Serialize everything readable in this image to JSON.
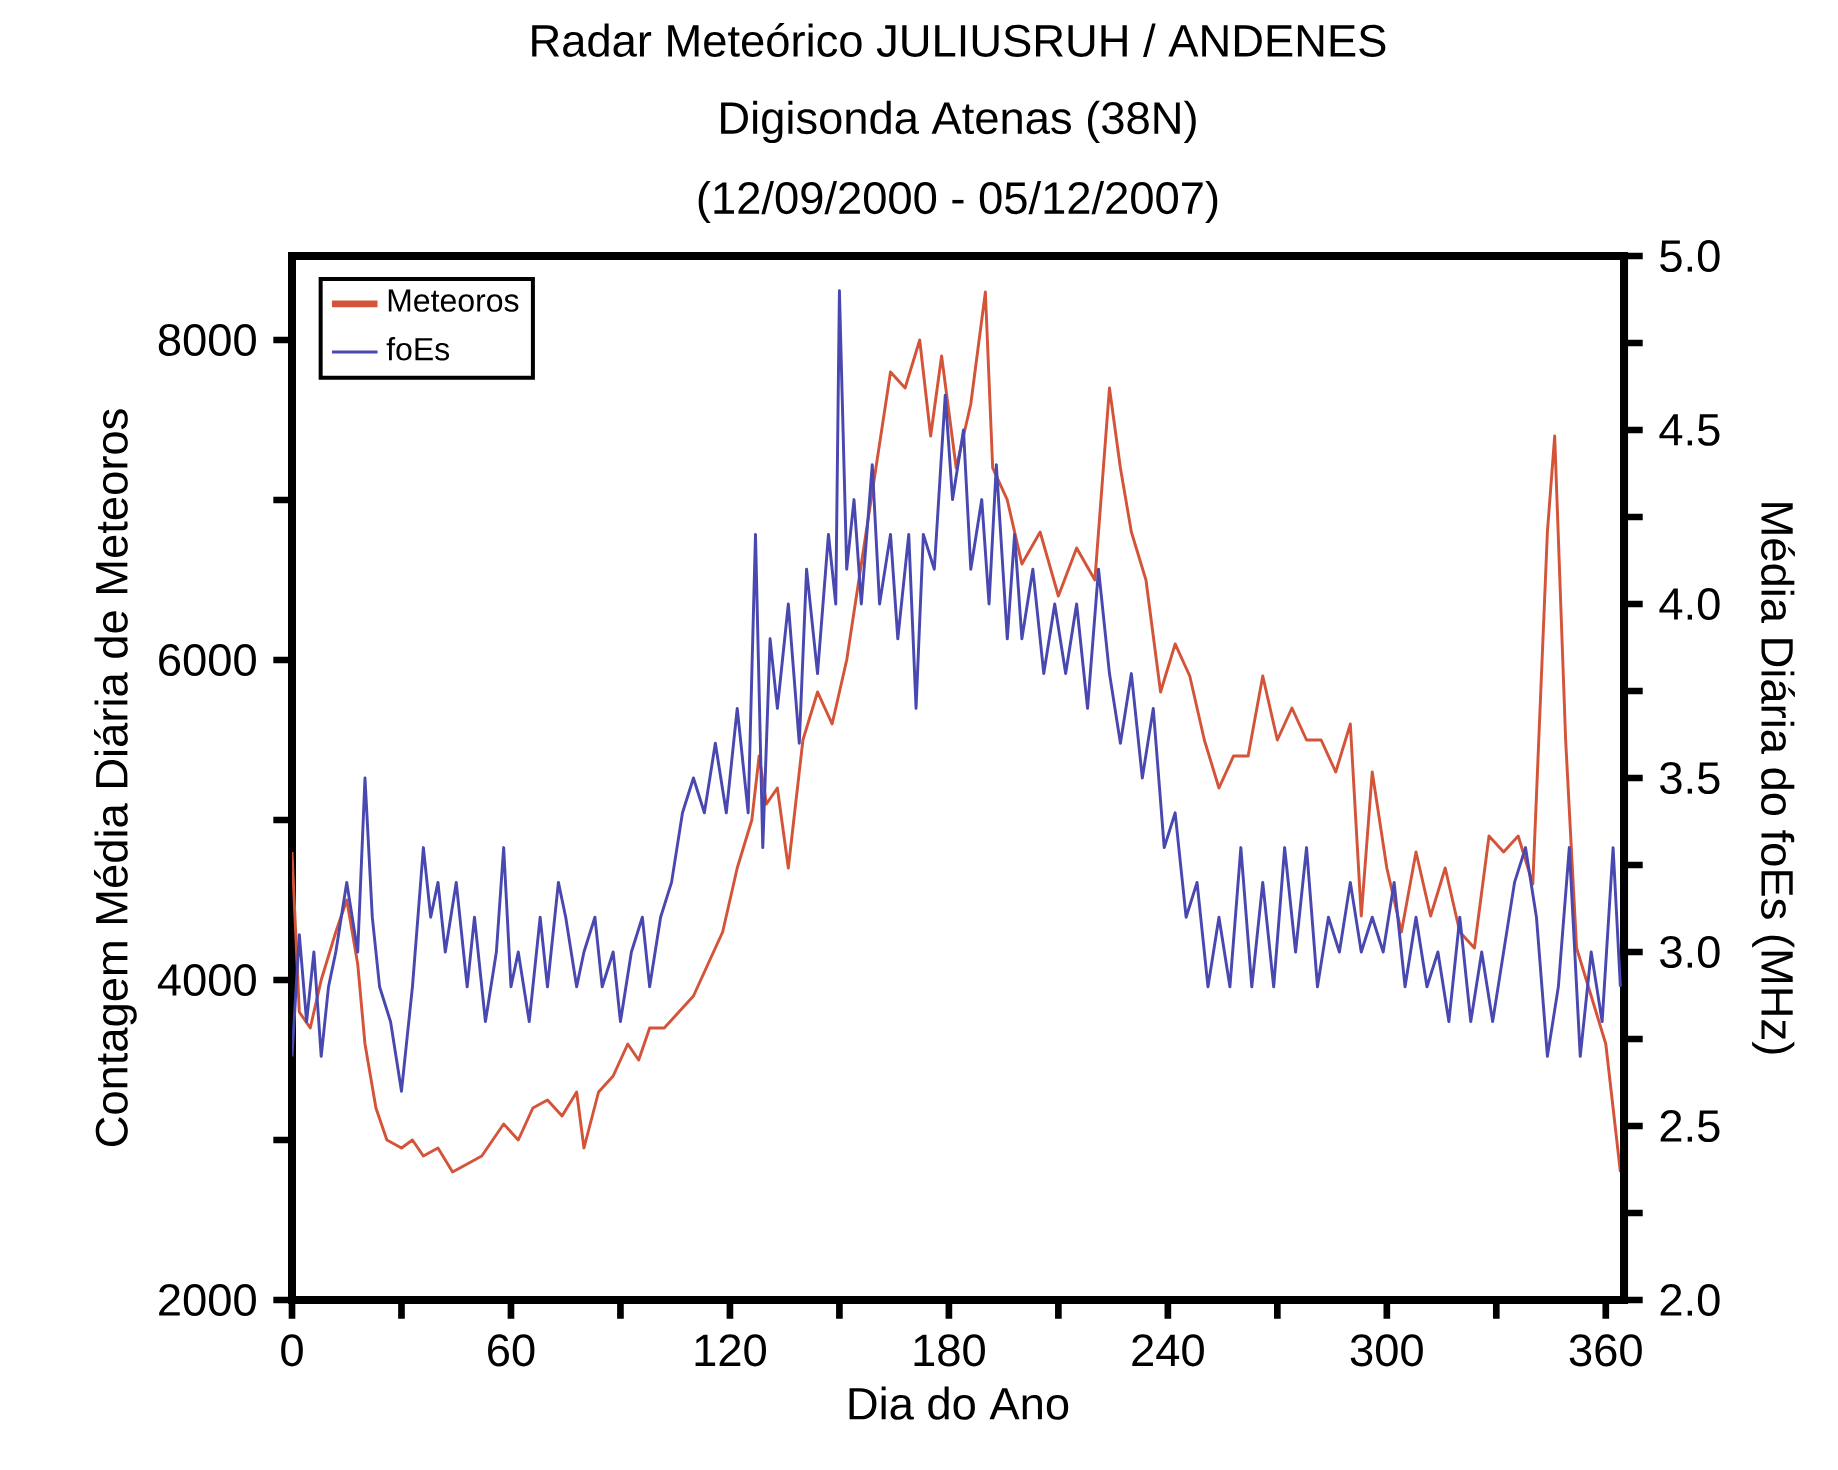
{
  "chart_data": {
    "type": "line",
    "title": "Radar Meteórico JULIUSRUH / ANDENES",
    "subtitle": "Digisonda Atenas (38N)",
    "annotations": [
      "(12/09/2000 - 05/12/2007)"
    ],
    "xlabel": "Dia do Ano",
    "ylabel": "Contagem Média Diária de Meteoros",
    "y2label": "Média Diária do foEs (MHz)",
    "xlim": [
      0,
      365
    ],
    "ylim": [
      2000,
      8525
    ],
    "y2lim": [
      2.0,
      5.0
    ],
    "xticks": [
      0,
      {
        "value": 30,
        "label": null
      },
      60,
      {
        "value": 90,
        "label": null
      },
      120,
      {
        "value": 150,
        "label": null
      },
      180,
      {
        "value": 210,
        "label": null
      },
      240,
      {
        "value": 270,
        "label": null
      },
      300,
      {
        "value": 330,
        "label": null
      },
      360
    ],
    "yticks": [
      2000,
      {
        "value": 3000,
        "label": null
      },
      4000,
      {
        "value": 5000,
        "label": null
      },
      6000,
      {
        "value": 7000,
        "label": null
      },
      8000
    ],
    "y2ticks": [
      {
        "value": 2.0,
        "label": "2.0"
      },
      {
        "value": 2.25,
        "label": null
      },
      2.5,
      {
        "value": 2.75,
        "label": null
      },
      {
        "value": 3.0,
        "label": "3.0"
      },
      {
        "value": 3.25,
        "label": null
      },
      3.5,
      {
        "value": 3.75,
        "label": null
      },
      {
        "value": 4.0,
        "label": "4.0"
      },
      {
        "value": 4.25,
        "label": null
      },
      4.5,
      {
        "value": 4.75,
        "label": null
      },
      {
        "value": 5.0,
        "label": "5.0"
      }
    ],
    "legend": "top left",
    "marker": "none",
    "line_style": "solid",
    "series": [
      {
        "name": "Meteoros",
        "color": "#d4543a",
        "x": [
          0,
          2,
          5,
          8,
          12,
          15,
          18,
          20,
          23,
          26,
          30,
          33,
          36,
          40,
          44,
          48,
          52,
          55,
          58,
          62,
          66,
          70,
          74,
          78,
          80,
          84,
          88,
          92,
          95,
          98,
          102,
          106,
          110,
          114,
          118,
          122,
          126,
          128,
          130,
          133,
          136,
          140,
          144,
          148,
          152,
          156,
          160,
          164,
          168,
          172,
          175,
          178,
          182,
          186,
          190,
          192,
          196,
          200,
          205,
          210,
          215,
          220,
          224,
          227,
          230,
          234,
          238,
          242,
          246,
          250,
          254,
          258,
          262,
          266,
          270,
          274,
          278,
          282,
          286,
          290,
          293,
          296,
          300,
          304,
          308,
          312,
          316,
          320,
          324,
          328,
          332,
          336,
          340,
          344,
          346,
          349,
          352,
          356,
          360,
          364
        ],
        "values": [
          4800,
          3800,
          3700,
          4000,
          4300,
          4500,
          4100,
          3600,
          3200,
          3000,
          2950,
          3000,
          2900,
          2950,
          2800,
          2850,
          2900,
          3000,
          3100,
          3000,
          3200,
          3250,
          3150,
          3300,
          2950,
          3300,
          3400,
          3600,
          3500,
          3700,
          3700,
          3800,
          3900,
          4100,
          4300,
          4700,
          5000,
          5400,
          5100,
          5200,
          4700,
          5500,
          5800,
          5600,
          6000,
          6600,
          7200,
          7800,
          7700,
          8000,
          7400,
          7900,
          7200,
          7600,
          8300,
          7200,
          7000,
          6600,
          6800,
          6400,
          6700,
          6500,
          7700,
          7200,
          6800,
          6500,
          5800,
          6100,
          5900,
          5500,
          5200,
          5400,
          5400,
          5900,
          5500,
          5700,
          5500,
          5500,
          5300,
          5600,
          4400,
          5300,
          4700,
          4300,
          4800,
          4400,
          4700,
          4300,
          4200,
          4900,
          4800,
          4900,
          4600,
          6800,
          7400,
          5500,
          4200,
          3900,
          3600,
          2800
        ]
      },
      {
        "name": "foEs",
        "color": "#4848b0",
        "axis": "y2",
        "x": [
          0,
          2,
          4,
          6,
          8,
          10,
          12,
          15,
          18,
          20,
          22,
          24,
          27,
          30,
          33,
          36,
          38,
          40,
          42,
          45,
          48,
          50,
          53,
          56,
          58,
          60,
          62,
          65,
          68,
          70,
          73,
          75,
          78,
          80,
          83,
          85,
          88,
          90,
          93,
          96,
          98,
          101,
          104,
          107,
          110,
          113,
          116,
          119,
          122,
          125,
          127,
          129,
          131,
          133,
          136,
          139,
          141,
          144,
          147,
          149,
          150,
          152,
          154,
          156,
          159,
          161,
          164,
          166,
          169,
          171,
          173,
          176,
          179,
          181,
          184,
          186,
          189,
          191,
          193,
          196,
          198,
          200,
          203,
          206,
          209,
          212,
          215,
          218,
          221,
          224,
          227,
          230,
          233,
          236,
          239,
          242,
          245,
          248,
          251,
          254,
          257,
          260,
          263,
          266,
          269,
          272,
          275,
          278,
          281,
          284,
          287,
          290,
          293,
          296,
          299,
          302,
          305,
          308,
          311,
          314,
          317,
          320,
          323,
          326,
          329,
          332,
          335,
          338,
          341,
          344,
          347,
          350,
          353,
          356,
          359,
          362,
          364
        ],
        "values": [
          2.7,
          3.05,
          2.8,
          3.0,
          2.7,
          2.9,
          3.0,
          3.2,
          3.0,
          3.5,
          3.1,
          2.9,
          2.8,
          2.6,
          2.9,
          3.3,
          3.1,
          3.2,
          3.0,
          3.2,
          2.9,
          3.1,
          2.8,
          3.0,
          3.3,
          2.9,
          3.0,
          2.8,
          3.1,
          2.9,
          3.2,
          3.1,
          2.9,
          3.0,
          3.1,
          2.9,
          3.0,
          2.8,
          3.0,
          3.1,
          2.9,
          3.1,
          3.2,
          3.4,
          3.5,
          3.4,
          3.6,
          3.4,
          3.7,
          3.4,
          4.2,
          3.3,
          3.9,
          3.7,
          4.0,
          3.6,
          4.1,
          3.8,
          4.2,
          4.0,
          4.9,
          4.1,
          4.3,
          4.0,
          4.4,
          4.0,
          4.2,
          3.9,
          4.2,
          3.7,
          4.2,
          4.1,
          4.6,
          4.3,
          4.5,
          4.1,
          4.3,
          4.0,
          4.4,
          3.9,
          4.2,
          3.9,
          4.1,
          3.8,
          4.0,
          3.8,
          4.0,
          3.7,
          4.1,
          3.8,
          3.6,
          3.8,
          3.5,
          3.7,
          3.3,
          3.4,
          3.1,
          3.2,
          2.9,
          3.1,
          2.9,
          3.3,
          2.9,
          3.2,
          2.9,
          3.3,
          3.0,
          3.3,
          2.9,
          3.1,
          3.0,
          3.2,
          3.0,
          3.1,
          3.0,
          3.2,
          2.9,
          3.1,
          2.9,
          3.0,
          2.8,
          3.1,
          2.8,
          3.0,
          2.8,
          3.0,
          3.2,
          3.3,
          3.1,
          2.7,
          2.9,
          3.3,
          2.7,
          3.0,
          2.8,
          3.3,
          2.9
        ]
      }
    ]
  }
}
